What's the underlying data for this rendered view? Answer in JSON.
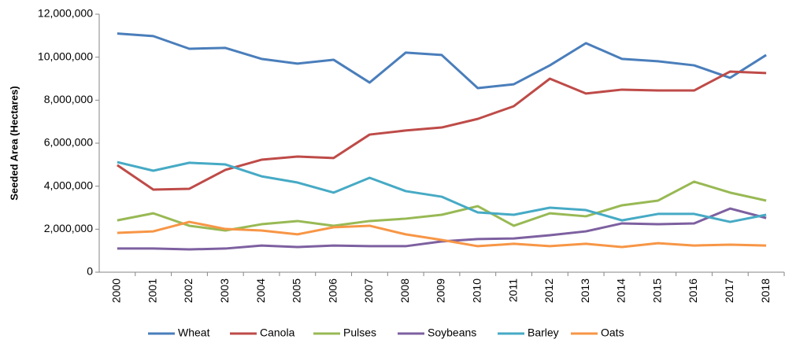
{
  "chart_data": {
    "type": "line",
    "ylabel": "Seeded Area (Hectares)",
    "categories": [
      "2000",
      "2001",
      "2002",
      "2003",
      "2004",
      "2005",
      "2006",
      "2007",
      "2008",
      "2009",
      "2010",
      "2011",
      "2012",
      "2013",
      "2014",
      "2015",
      "2016",
      "2017",
      "2018"
    ],
    "ylim": [
      0,
      12000000
    ],
    "yticks": [
      0,
      {
        "value": 2000000,
        "label": "2,000,000"
      },
      {
        "value": 4000000,
        "label": "4,000,000"
      },
      {
        "value": 6000000,
        "label": "6,000,000"
      },
      {
        "value": 8000000,
        "label": "8,000,000"
      },
      {
        "value": 10000000,
        "label": "10,000,000"
      },
      {
        "value": 12000000,
        "label": "12,000,000"
      }
    ],
    "grid": false,
    "legend": "bottom",
    "series": [
      {
        "name": "Wheat",
        "color": "#4a7ebb",
        "values": [
          11100000,
          10980000,
          10390000,
          10430000,
          9920000,
          9700000,
          9880000,
          8820000,
          10210000,
          10100000,
          8560000,
          8740000,
          9620000,
          10650000,
          9920000,
          9810000,
          9620000,
          9040000,
          10100000
        ]
      },
      {
        "name": "Canola",
        "color": "#be4b48",
        "values": [
          4980000,
          3840000,
          3880000,
          4760000,
          5230000,
          5380000,
          5310000,
          6400000,
          6590000,
          6730000,
          7130000,
          7720000,
          9000000,
          8310000,
          8490000,
          8450000,
          8450000,
          9330000,
          9260000
        ]
      },
      {
        "name": "Pulses",
        "color": "#98b954",
        "values": [
          2410000,
          2740000,
          2160000,
          1940000,
          2230000,
          2380000,
          2160000,
          2380000,
          2490000,
          2670000,
          3070000,
          2160000,
          2740000,
          2600000,
          3110000,
          3330000,
          4210000,
          3700000,
          3330000
        ]
      },
      {
        "name": "Soybeans",
        "color": "#7d60a0",
        "values": [
          1100000,
          1100000,
          1060000,
          1100000,
          1240000,
          1170000,
          1240000,
          1210000,
          1210000,
          1430000,
          1540000,
          1570000,
          1720000,
          1900000,
          2270000,
          2230000,
          2270000,
          2960000,
          2520000
        ]
      },
      {
        "name": "Barley",
        "color": "#46aac5",
        "values": [
          5120000,
          4720000,
          5090000,
          5010000,
          4460000,
          4170000,
          3700000,
          4390000,
          3770000,
          3510000,
          2780000,
          2670000,
          3000000,
          2890000,
          2410000,
          2710000,
          2710000,
          2340000,
          2670000
        ]
      },
      {
        "name": "Oats",
        "color": "#f79646",
        "values": [
          1830000,
          1900000,
          2340000,
          2010000,
          1940000,
          1760000,
          2090000,
          2160000,
          1760000,
          1500000,
          1210000,
          1320000,
          1210000,
          1320000,
          1170000,
          1350000,
          1240000,
          1280000,
          1240000
        ]
      }
    ]
  }
}
